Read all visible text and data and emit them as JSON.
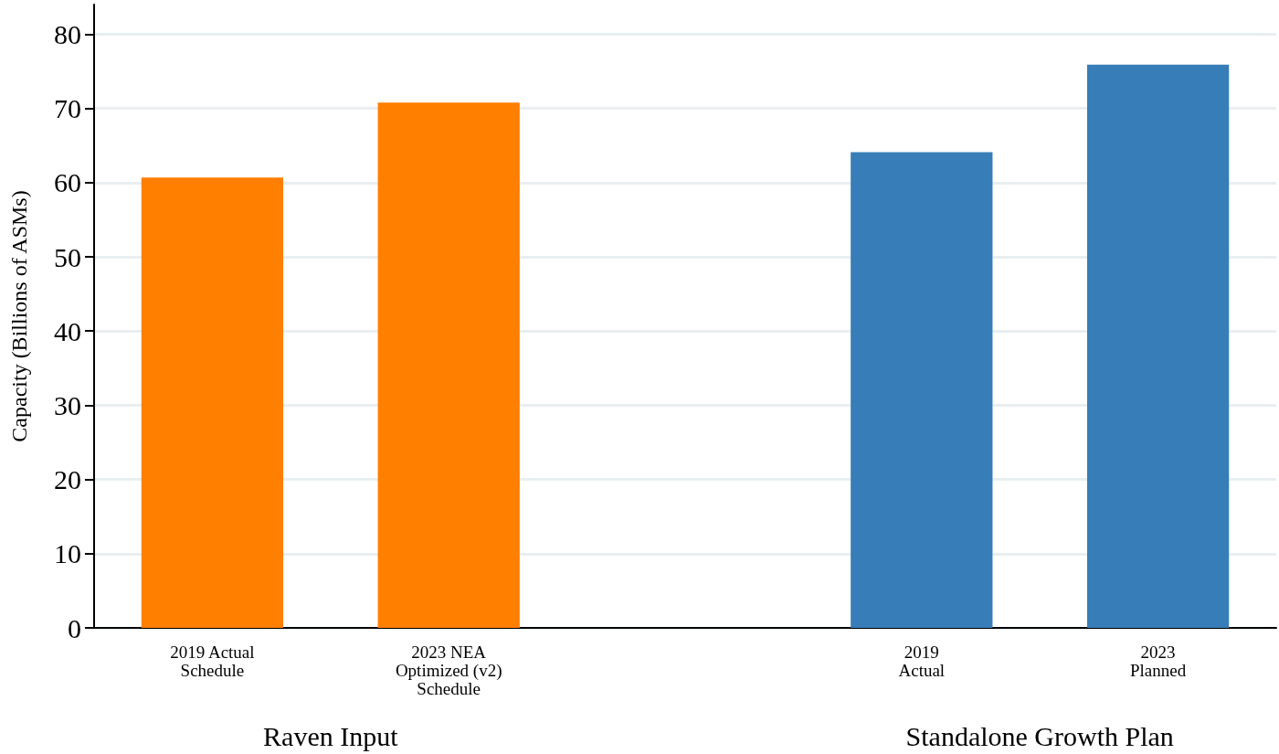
{
  "chart_data": {
    "type": "bar",
    "ylabel": "Capacity (Billions of ASMs)",
    "categories": [
      "2019 Actual\nSchedule",
      "2023 NEA\nOptimized (v2)\nSchedule",
      null,
      "2019\nActual",
      "2023\nPlanned"
    ],
    "values": [
      60.7,
      70.8,
      null,
      64.1,
      75.9
    ],
    "colors": [
      "#ff7f00",
      "#ff7f00",
      null,
      "#377eb8",
      "#377eb8"
    ],
    "ylim": [
      0,
      84
    ],
    "yticks": [
      0,
      10,
      20,
      30,
      40,
      50,
      60,
      70,
      80
    ],
    "grid": "y",
    "annotations": [
      "Raven Input",
      "Standalone Growth Plan"
    ]
  }
}
